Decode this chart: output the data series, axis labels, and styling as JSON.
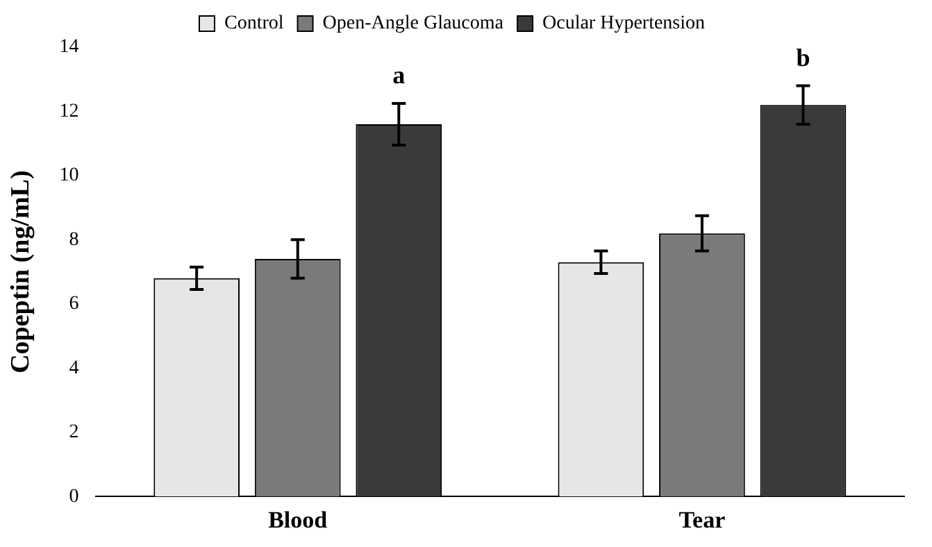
{
  "chart_data": {
    "type": "bar",
    "ylabel": "Copeptin (ng/mL)",
    "categories": [
      "Blood",
      "Tear"
    ],
    "series": [
      {
        "name": "Control",
        "color": "#e6e6e6",
        "values": [
          6.8,
          7.3
        ],
        "errors": [
          0.35,
          0.35
        ]
      },
      {
        "name": "Open-Angle Glaucoma",
        "color": "#7a7a7a",
        "values": [
          7.4,
          8.2
        ],
        "errors": [
          0.6,
          0.55
        ]
      },
      {
        "name": "Ocular Hypertension",
        "color": "#3a3a3a",
        "values": [
          11.6,
          12.2
        ],
        "errors": [
          0.65,
          0.6
        ]
      }
    ],
    "ylim": [
      0,
      14
    ],
    "yticks": [
      0,
      2,
      4,
      6,
      8,
      10,
      12,
      14
    ],
    "grid": false,
    "legend": "top",
    "annotations": [
      "a",
      "b"
    ]
  }
}
